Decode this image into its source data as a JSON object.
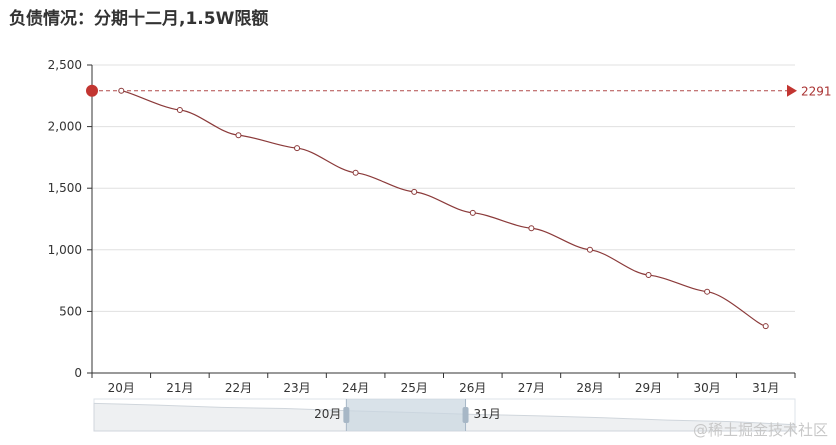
{
  "title": "负债情况：分期十二月,1.5W限额",
  "watermark": "@稀土掘金技术社区",
  "colors": {
    "line": "#8b3a3a",
    "mark": "#c23531",
    "grid": "#e0e0e0",
    "axis": "#333333",
    "zoom_fill": "#c9d6e0"
  },
  "chart_data": {
    "type": "line",
    "smooth": true,
    "categories": [
      "20月",
      "21月",
      "22月",
      "23月",
      "24月",
      "25月",
      "26月",
      "27月",
      "28月",
      "29月",
      "30月",
      "31月"
    ],
    "values": [
      2291,
      2135,
      1930,
      1825,
      1625,
      1470,
      1300,
      1175,
      1000,
      795,
      660,
      380
    ],
    "ylim": [
      0,
      2500
    ],
    "yticks": [
      0,
      500,
      1000,
      1500,
      2000,
      2500
    ],
    "ytick_labels": [
      "0",
      "500",
      "1,000",
      "1,500",
      "2,000",
      "2,500"
    ],
    "grid": true,
    "mark_line": {
      "type": "max",
      "value": 2291,
      "label": "2291"
    },
    "data_zoom": {
      "start_label": "20月",
      "end_label": "31月",
      "start_percent": 36,
      "end_percent": 53
    }
  }
}
